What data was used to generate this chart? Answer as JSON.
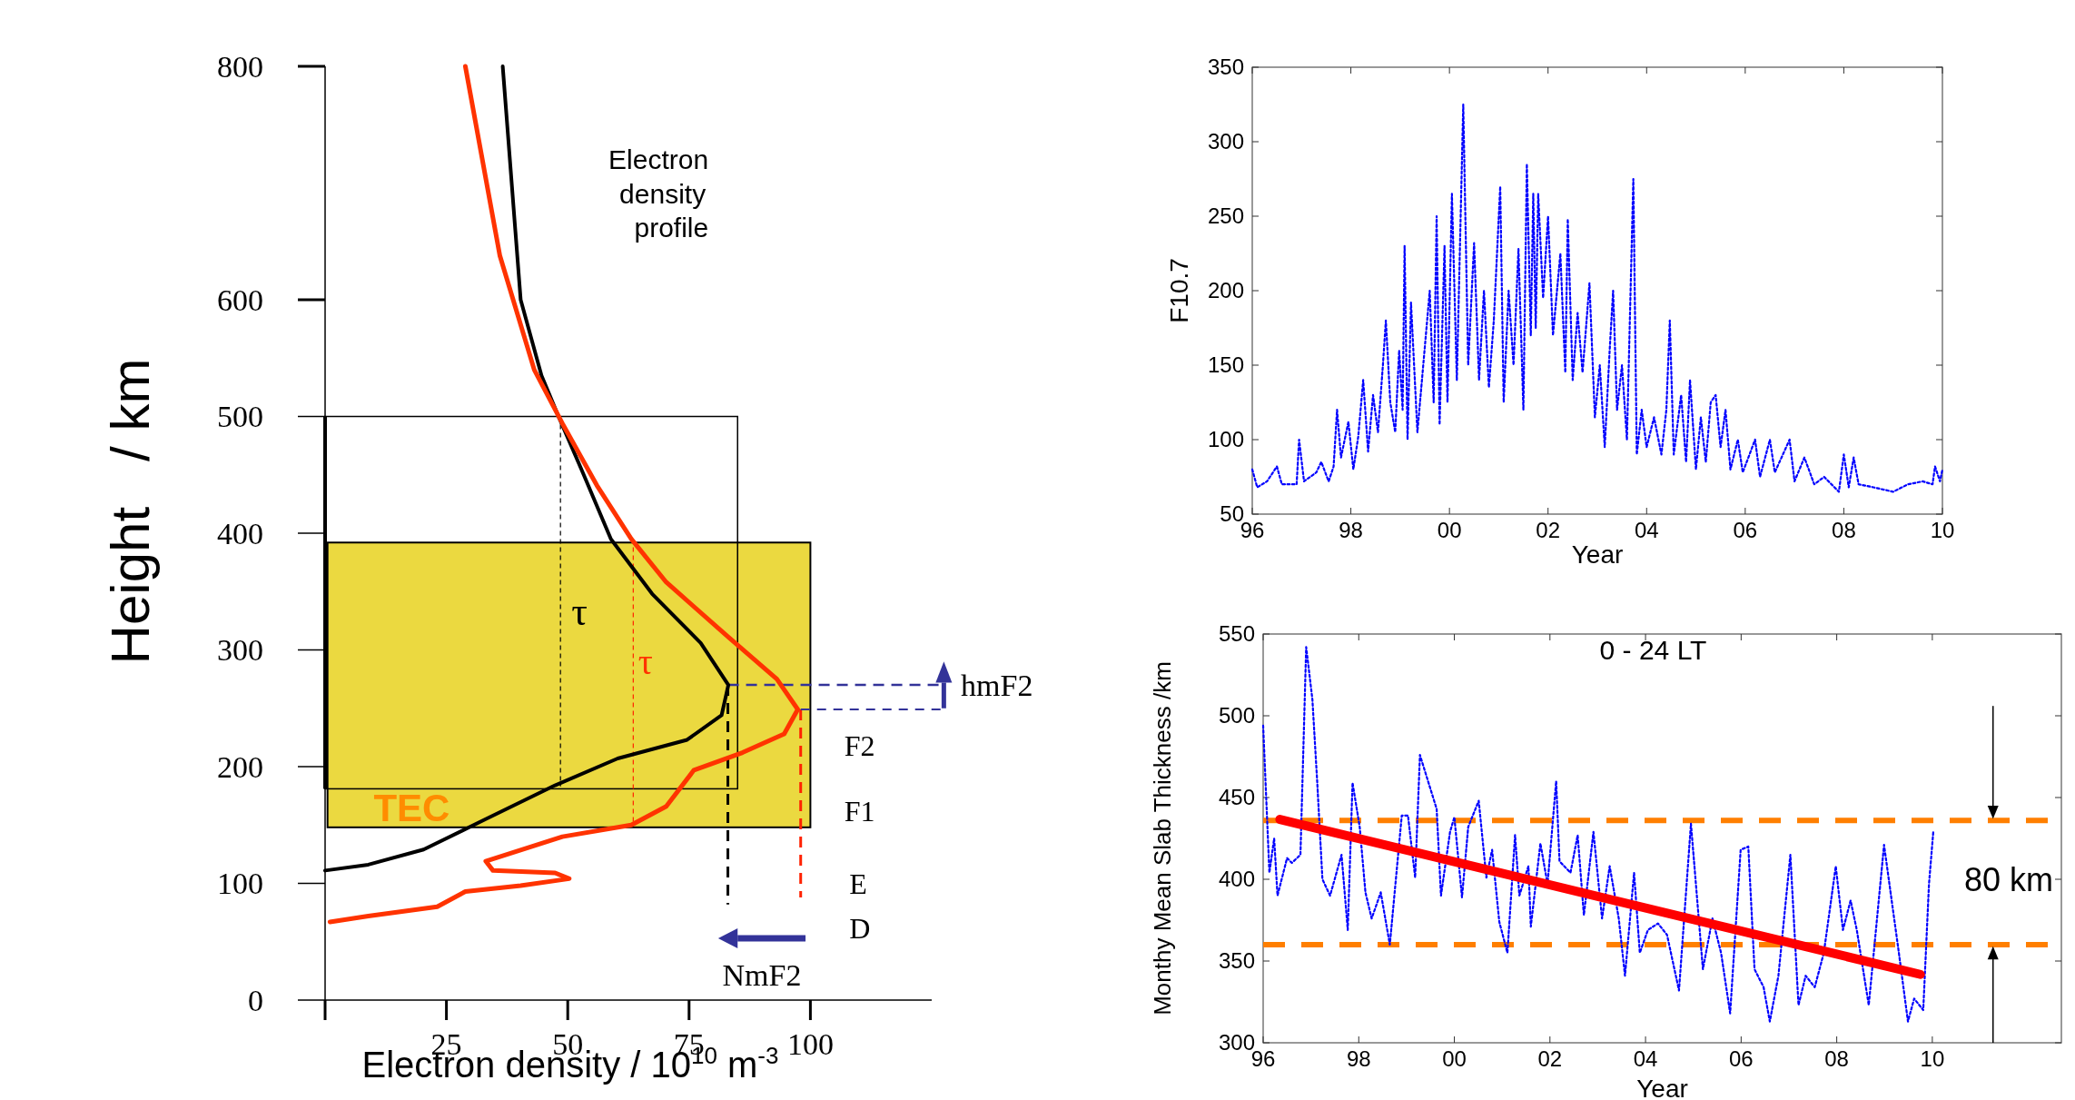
{
  "chart_data": [
    {
      "type": "line",
      "xlabel": "Electron density / 10$^{10}$ m$^{-3}$",
      "ylabel": "Height   / km",
      "xlim": [
        0,
        125
      ],
      "ylim": [
        0,
        800
      ],
      "xticks": [
        {
          "value": 0,
          "label": null
        },
        25,
        50,
        75,
        100
      ],
      "yticks": [
        0,
        100,
        200,
        300,
        400,
        500,
        600,
        800
      ],
      "line_style": "solid",
      "series": [
        {
          "color": "#000000",
          "x": [
            36.6,
            40.3,
            44.6,
            48.1,
            53.1,
            58.9,
            67.4,
            77.4,
            83.1,
            81.7,
            74.6,
            60.3,
            47.4,
            33.1,
            20.3,
            8.9,
            0
          ],
          "values": [
            800,
            600,
            535,
            500,
            452,
            395,
            348,
            306,
            270,
            244,
            223,
            207,
            184,
            155,
            129,
            116,
            111
          ]
        },
        {
          "color": "#ff3300",
          "x": [
            28.9,
            36.0,
            43.1,
            48.9,
            56.0,
            63.1,
            70.3,
            83.1,
            93.1,
            97.4,
            94.6,
            86.0,
            76.0,
            70.3,
            63.1,
            48.9,
            33.1,
            34.6,
            47.4,
            50.3,
            40.3,
            28.9,
            23.1,
            8.9,
            1.0
          ],
          "values": [
            800,
            638,
            540,
            494,
            441,
            395,
            358,
            311,
            275,
            249,
            228,
            212,
            197,
            166,
            150,
            140,
            119,
            111,
            109,
            104,
            98,
            93,
            80,
            72,
            67
          ]
        }
      ],
      "annotations": [
        "Electron density profile",
        "τ",
        "τ",
        "TEC",
        {
          "text": "hmF2",
          "x": 83,
          "y": 270
        },
        "F2",
        "F1",
        "E",
        "D",
        "NmF2"
      ]
    },
    {
      "type": "line",
      "xlabel": "Year",
      "ylabel": "F10.7",
      "xlim": [
        1996,
        2010
      ],
      "ylim": [
        50,
        350
      ],
      "xticks": [
        {
          "value": 1996,
          "label": "96"
        },
        {
          "value": 1998,
          "label": "98"
        },
        {
          "value": 2000,
          "label": "00"
        },
        {
          "value": 2002,
          "label": "02"
        },
        {
          "value": 2004,
          "label": "04"
        },
        {
          "value": 2006,
          "label": "06"
        },
        {
          "value": 2008,
          "label": "08"
        },
        {
          "value": 2010,
          "label": "10"
        }
      ],
      "yticks": [
        50,
        100,
        150,
        200,
        250,
        300,
        350
      ],
      "line_style": "dotted",
      "series": [
        {
          "color": "#0000ff",
          "x": [
            1996.0,
            1996.1,
            1996.3,
            1996.5,
            1996.6,
            1996.9,
            1996.95,
            1997.05,
            1997.3,
            1997.4,
            1997.55,
            1997.65,
            1997.72,
            1997.8,
            1997.95,
            1998.05,
            1998.15,
            1998.25,
            1998.35,
            1998.45,
            1998.55,
            1998.65,
            1998.71,
            1998.8,
            1998.9,
            1998.98,
            1999.05,
            1999.09,
            1999.15,
            1999.22,
            1999.35,
            1999.6,
            1999.68,
            1999.74,
            1999.8,
            1999.9,
            1999.96,
            2000.05,
            2000.15,
            2000.28,
            2000.38,
            2000.5,
            2000.6,
            2000.7,
            2000.8,
            2000.9,
            2001.03,
            2001.1,
            2001.2,
            2001.3,
            2001.4,
            2001.5,
            2001.57,
            2001.65,
            2001.7,
            2001.75,
            2001.8,
            2001.9,
            2002.0,
            2002.1,
            2002.25,
            2002.35,
            2002.4,
            2002.5,
            2002.6,
            2002.7,
            2002.84,
            2002.95,
            2003.05,
            2003.15,
            2003.25,
            2003.32,
            2003.4,
            2003.5,
            2003.6,
            2003.73,
            2003.8,
            2003.9,
            2004.0,
            2004.15,
            2004.3,
            2004.4,
            2004.47,
            2004.55,
            2004.7,
            2004.8,
            2004.88,
            2005.0,
            2005.1,
            2005.2,
            2005.3,
            2005.4,
            2005.5,
            2005.6,
            2005.7,
            2005.85,
            2005.95,
            2006.2,
            2006.3,
            2006.5,
            2006.6,
            2006.9,
            2007.0,
            2007.2,
            2007.4,
            2007.6,
            2007.9,
            2008.0,
            2008.1,
            2008.2,
            2008.3,
            2008.6,
            2009.0,
            2009.3,
            2009.6,
            2009.8,
            2009.85,
            2009.95,
            2010.0
          ],
          "values": [
            80,
            68,
            72,
            82,
            70,
            70,
            100,
            72,
            78,
            85,
            72,
            82,
            120,
            88,
            112,
            80,
            102,
            140,
            92,
            130,
            105,
            150,
            180,
            125,
            105,
            160,
            120,
            230,
            100,
            192,
            105,
            200,
            125,
            250,
            110,
            230,
            125,
            265,
            140,
            325,
            150,
            232,
            140,
            200,
            135,
            180,
            270,
            125,
            200,
            150,
            228,
            120,
            285,
            170,
            265,
            175,
            265,
            195,
            250,
            170,
            225,
            145,
            248,
            140,
            185,
            145,
            205,
            115,
            150,
            95,
            160,
            200,
            120,
            150,
            100,
            275,
            90,
            120,
            95,
            115,
            90,
            120,
            180,
            90,
            130,
            85,
            140,
            80,
            115,
            85,
            125,
            130,
            95,
            120,
            80,
            100,
            78,
            100,
            75,
            100,
            78,
            100,
            72,
            88,
            70,
            75,
            65,
            90,
            68,
            88,
            70,
            68,
            65,
            70,
            72,
            70,
            82,
            72,
            80
          ]
        }
      ]
    },
    {
      "type": "line",
      "title": "0 - 24 LT",
      "xlabel": "Year",
      "ylabel": "Monthy Mean Slab Thickness /km",
      "xlim": [
        1996,
        2012.7
      ],
      "ylim": [
        300,
        550
      ],
      "xticks": [
        {
          "value": 1996,
          "label": "96"
        },
        {
          "value": 1998,
          "label": "98"
        },
        {
          "value": 2000,
          "label": "00"
        },
        {
          "value": 2002,
          "label": "02"
        },
        {
          "value": 2004,
          "label": "04"
        },
        {
          "value": 2006,
          "label": "06"
        },
        {
          "value": 2008,
          "label": "08"
        },
        {
          "value": 2010,
          "label": "10"
        }
      ],
      "yticks": [
        300,
        350,
        400,
        450,
        500,
        550
      ],
      "line_style": "dotted",
      "series": [
        {
          "color": "#0000ff",
          "x": [
            1996.0,
            1996.13,
            1996.23,
            1996.3,
            1996.5,
            1996.6,
            1996.78,
            1996.9,
            1997.03,
            1997.13,
            1997.24,
            1997.4,
            1997.64,
            1997.77,
            1997.87,
            1998.02,
            1998.14,
            1998.27,
            1998.46,
            1998.65,
            1998.9,
            1999.03,
            1999.18,
            1999.28,
            1999.63,
            1999.72,
            1999.91,
            2000.0,
            2000.16,
            2000.29,
            2000.51,
            2000.67,
            2000.79,
            2000.94,
            2001.11,
            2001.27,
            2001.36,
            2001.55,
            2001.6,
            2001.8,
            2001.95,
            2002.13,
            2002.2,
            2002.43,
            2002.58,
            2002.71,
            2002.91,
            2003.09,
            2003.25,
            2003.44,
            2003.57,
            2003.76,
            2003.88,
            2004.05,
            2004.26,
            2004.45,
            2004.7,
            2004.95,
            2005.2,
            2005.4,
            2005.58,
            2005.77,
            2005.99,
            2006.15,
            2006.28,
            2006.47,
            2006.6,
            2006.78,
            2007.03,
            2007.2,
            2007.35,
            2007.54,
            2007.73,
            2007.98,
            2008.13,
            2008.29,
            2008.42,
            2008.67,
            2008.99,
            2009.3,
            2009.49,
            2009.62,
            2009.81,
            2009.93,
            2010.02
          ],
          "values": [
            494,
            404,
            425,
            390,
            413,
            410,
            415,
            542,
            510,
            460,
            400,
            390,
            415,
            369,
            459,
            432,
            392,
            376,
            392,
            360,
            439,
            439,
            401,
            476,
            443,
            390,
            429,
            438,
            389,
            432,
            448,
            401,
            418,
            374,
            355,
            427,
            390,
            408,
            371,
            422,
            397,
            460,
            411,
            404,
            427,
            378,
            429,
            376,
            408,
            376,
            341,
            404,
            355,
            369,
            373,
            366,
            332,
            434,
            345,
            376,
            355,
            318,
            418,
            420,
            345,
            334,
            313,
            341,
            415,
            323,
            341,
            334,
            355,
            408,
            369,
            387,
            369,
            323,
            421,
            355,
            313,
            327,
            320,
            397,
            429
          ]
        },
        {
          "type": "line",
          "color": "#ff0000",
          "line_style": "solid",
          "x": [
            1996.35,
            2009.75
          ],
          "values": [
            436.6,
            341.8
          ]
        }
      ],
      "ref_lines": [
        {
          "axis": "y",
          "value": 436,
          "color": "#ff7f00",
          "line_style": "dashed"
        },
        {
          "axis": "y",
          "value": 360,
          "color": "#ff7f00",
          "line_style": "dashed"
        }
      ],
      "annotations": [
        "80 km"
      ]
    }
  ]
}
